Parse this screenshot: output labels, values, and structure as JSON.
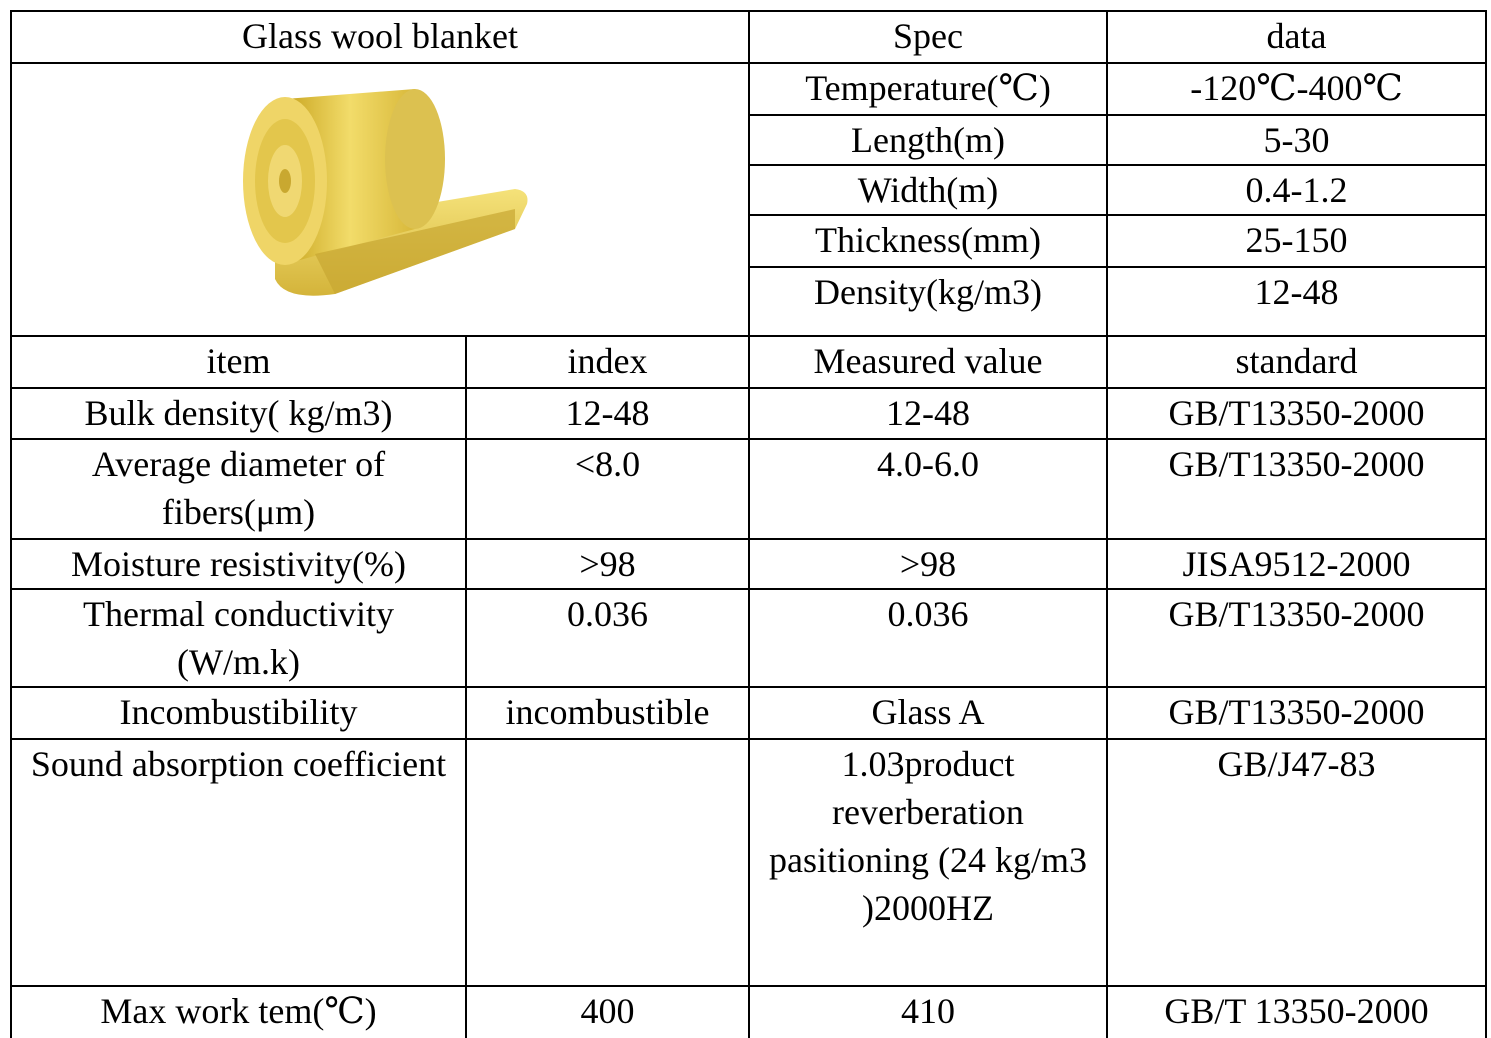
{
  "header": {
    "title": "Glass wool blanket",
    "spec": "Spec",
    "data": "data"
  },
  "specs": [
    {
      "name": "Temperature(℃)",
      "value": "-120℃-400℃"
    },
    {
      "name": "Length(m)",
      "value": "5-30"
    },
    {
      "name": "Width(m)",
      "value": "0.4-1.2"
    },
    {
      "name": "Thickness(mm)",
      "value": "25-150"
    },
    {
      "name": "Density(kg/m3)",
      "value": "12-48"
    }
  ],
  "columns": [
    "item",
    "index",
    "Measured value",
    "standard"
  ],
  "rows": [
    {
      "item": "Bulk density( kg/m3)",
      "index": "12-48",
      "measured": "12-48",
      "standard": "GB/T13350-2000"
    },
    {
      "item": "Average diameter of fibers(μm)",
      "index": "<8.0",
      "measured": "4.0-6.0",
      "standard": "GB/T13350-2000"
    },
    {
      "item": "Moisture resistivity(%)",
      "index": ">98",
      "measured": ">98",
      "standard": "JISA9512-2000"
    },
    {
      "item": "Thermal conductivity (W/m.k)",
      "index": "0.036",
      "measured": "0.036",
      "standard": "GB/T13350-2000"
    },
    {
      "item": "Incombustibility",
      "index": "incombustible",
      "measured": "Glass A",
      "standard": "GB/T13350-2000"
    },
    {
      "item": "Sound absorption coefficient",
      "measured": "1.03product reverberation pasitioning (24 kg/m3 )2000HZ",
      "standard": "GB/J47-83"
    },
    {
      "item": "Max work tem(℃)",
      "index": "400",
      "measured": "410",
      "standard": "GB/T 13350-2000"
    }
  ]
}
